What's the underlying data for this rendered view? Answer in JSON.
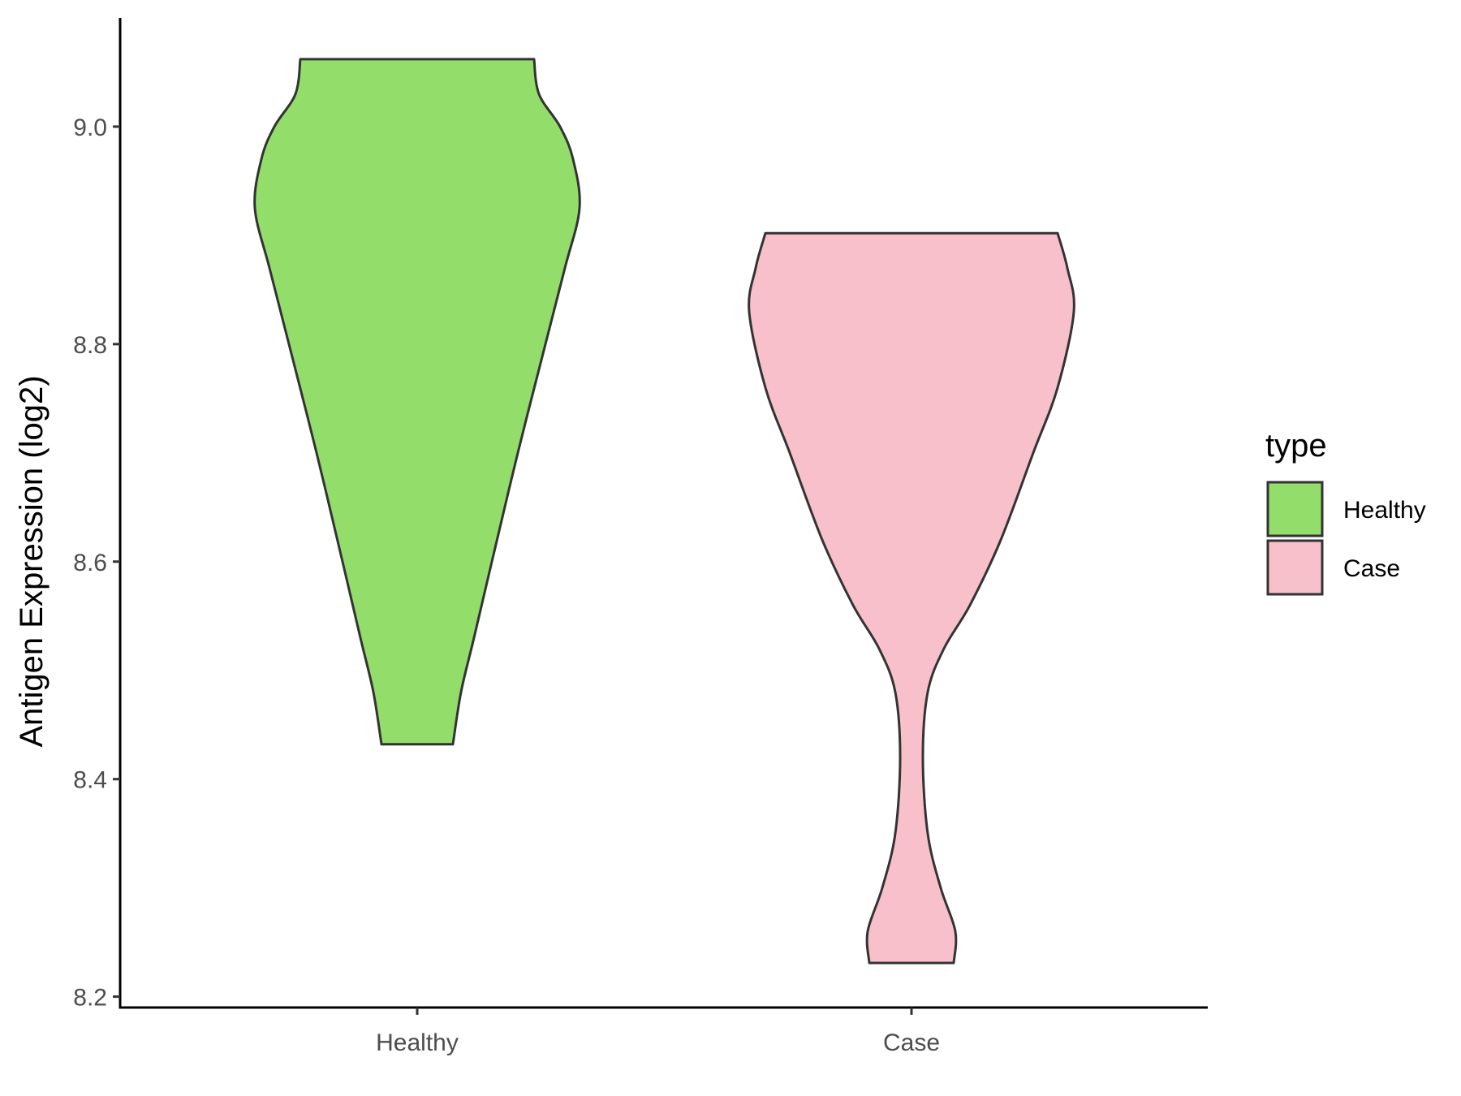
{
  "chart_data": {
    "type": "violin",
    "title": "",
    "xlabel": "",
    "ylabel": "Antigen Expression (log2)",
    "ylim": [
      8.19,
      9.1
    ],
    "yticks": [
      "8.2",
      "8.4",
      "8.6",
      "8.8",
      "9.0"
    ],
    "ytick_values": [
      8.2,
      8.4,
      8.6,
      8.8,
      9.0
    ],
    "categories": [
      "Healthy",
      "Case"
    ],
    "grid": false,
    "legend": {
      "title": "type",
      "placement": "right",
      "entries": [
        {
          "label": "Healthy",
          "color": "#93DD6A"
        },
        {
          "label": "Case",
          "color": "#F7C0CB"
        }
      ]
    },
    "series": [
      {
        "name": "Healthy",
        "color": "#93DD6A",
        "min": 8.432,
        "max": 9.062,
        "density": [
          [
            8.432,
            0.22
          ],
          [
            8.48,
            0.27
          ],
          [
            8.53,
            0.35
          ],
          [
            8.6,
            0.46
          ],
          [
            8.7,
            0.62
          ],
          [
            8.8,
            0.79
          ],
          [
            8.87,
            0.91
          ],
          [
            8.925,
            1.0
          ],
          [
            8.97,
            0.96
          ],
          [
            9.0,
            0.88
          ],
          [
            9.03,
            0.75
          ],
          [
            9.062,
            0.72
          ]
        ]
      },
      {
        "name": "Case",
        "color": "#F7C0CB",
        "min": 8.231,
        "max": 8.902,
        "density": [
          [
            8.231,
            0.26
          ],
          [
            8.26,
            0.27
          ],
          [
            8.3,
            0.18
          ],
          [
            8.35,
            0.1
          ],
          [
            8.42,
            0.07
          ],
          [
            8.48,
            0.1
          ],
          [
            8.52,
            0.2
          ],
          [
            8.56,
            0.36
          ],
          [
            8.62,
            0.55
          ],
          [
            8.7,
            0.75
          ],
          [
            8.76,
            0.9
          ],
          [
            8.83,
            1.0
          ],
          [
            8.87,
            0.96
          ],
          [
            8.902,
            0.9
          ]
        ]
      }
    ]
  }
}
